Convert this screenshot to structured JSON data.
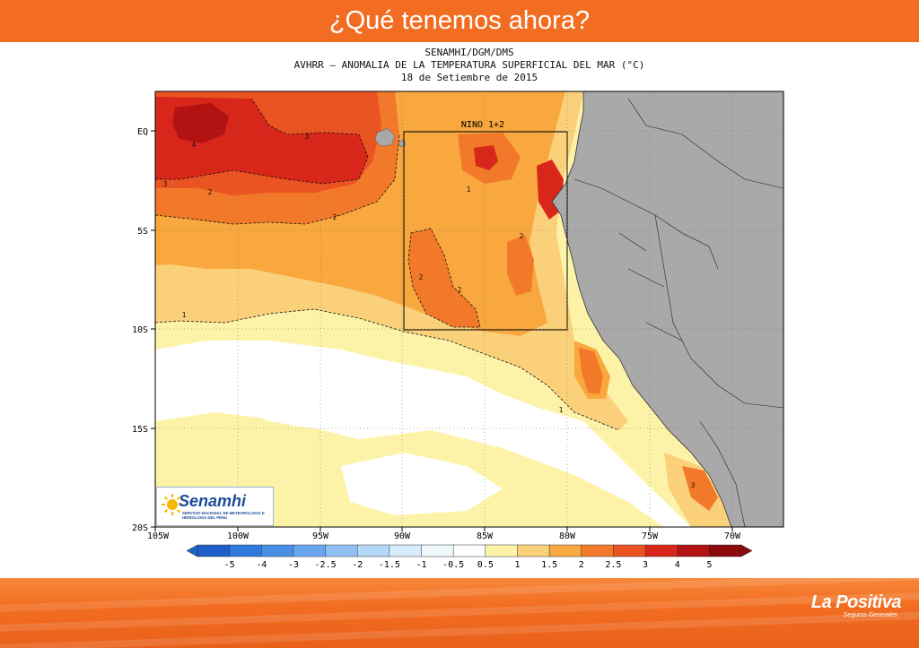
{
  "slide": {
    "title": "¿Qué tenemos ahora?",
    "brand_name": "La Positiva",
    "brand_tagline": "Seguros Generales"
  },
  "map": {
    "title_line1": "SENAMHI/DGM/DMS",
    "title_line2": "AVHRR – ANOMALIA DE LA TEMPERATURA SUPERFICIAL DEL MAR (°C)",
    "title_line3": "18 de Setiembre de 2015",
    "box_label": "NINO 1+2",
    "lon_labels": [
      "105W",
      "100W",
      "95W",
      "90W",
      "85W",
      "80W",
      "75W",
      "70W"
    ],
    "lat_labels": [
      "EQ",
      "5S",
      "10S",
      "15S",
      "20S"
    ],
    "contour_labels": [
      "4",
      "3",
      "3",
      "2",
      "2",
      "1",
      "2",
      "2",
      "2",
      "1",
      "1",
      "3"
    ],
    "colorbar_labels": [
      "-5",
      "-4",
      "-3",
      "-2.5",
      "-2",
      "-1.5",
      "-1",
      "-0.5",
      "0.5",
      "1",
      "1.5",
      "2",
      "2.5",
      "3",
      "4",
      "5"
    ],
    "colorbar_colors": [
      "#1f5fc9",
      "#2f78dd",
      "#4a8fe6",
      "#6aa6ef",
      "#8fc0f4",
      "#b4d8f8",
      "#d6ecfb",
      "#eef8fb",
      "#ffffff",
      "#fdf3a8",
      "#fbd07a",
      "#f8a83e",
      "#f2792a",
      "#ea5322",
      "#d9261b",
      "#b31213",
      "#8c0a0c"
    ],
    "land_color": "#a9a9a9",
    "logo_word": "Senamhi",
    "logo_subtext": "SERVICIO NACIONAL DE METEOROLOGIA E HIDROLOGIA DEL PERU"
  }
}
